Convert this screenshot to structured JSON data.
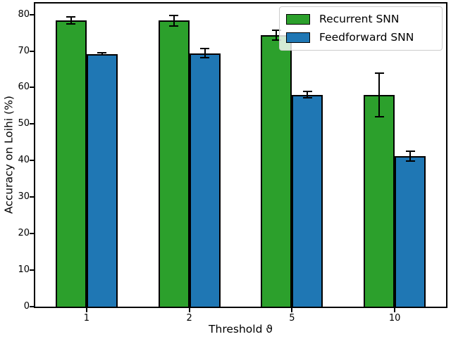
{
  "chart_data": {
    "type": "bar",
    "title": "",
    "xlabel": "Threshold ϑ",
    "ylabel": "Accuracy on Loihi (%)",
    "categories": [
      "1",
      "2",
      "5",
      "10"
    ],
    "series": [
      {
        "name": "Recurrent SNN",
        "color": "#2ca02c",
        "values": [
          78.4,
          78.3,
          74.3,
          57.9
        ],
        "errors": [
          1.0,
          1.5,
          1.4,
          6.0
        ]
      },
      {
        "name": "Feedforward SNN",
        "color": "#1f77b4",
        "values": [
          69.2,
          69.4,
          58.0,
          41.2
        ],
        "errors": [
          0.3,
          1.2,
          0.9,
          1.3
        ]
      }
    ],
    "yticks": [
      0,
      10,
      20,
      30,
      40,
      50,
      60,
      70,
      80
    ],
    "ylim": [
      0,
      83
    ],
    "grid": false,
    "legend_position": "upper right",
    "bar_edge_color": "#000000",
    "error_bar_color": "#000000",
    "background": "#ffffff"
  }
}
